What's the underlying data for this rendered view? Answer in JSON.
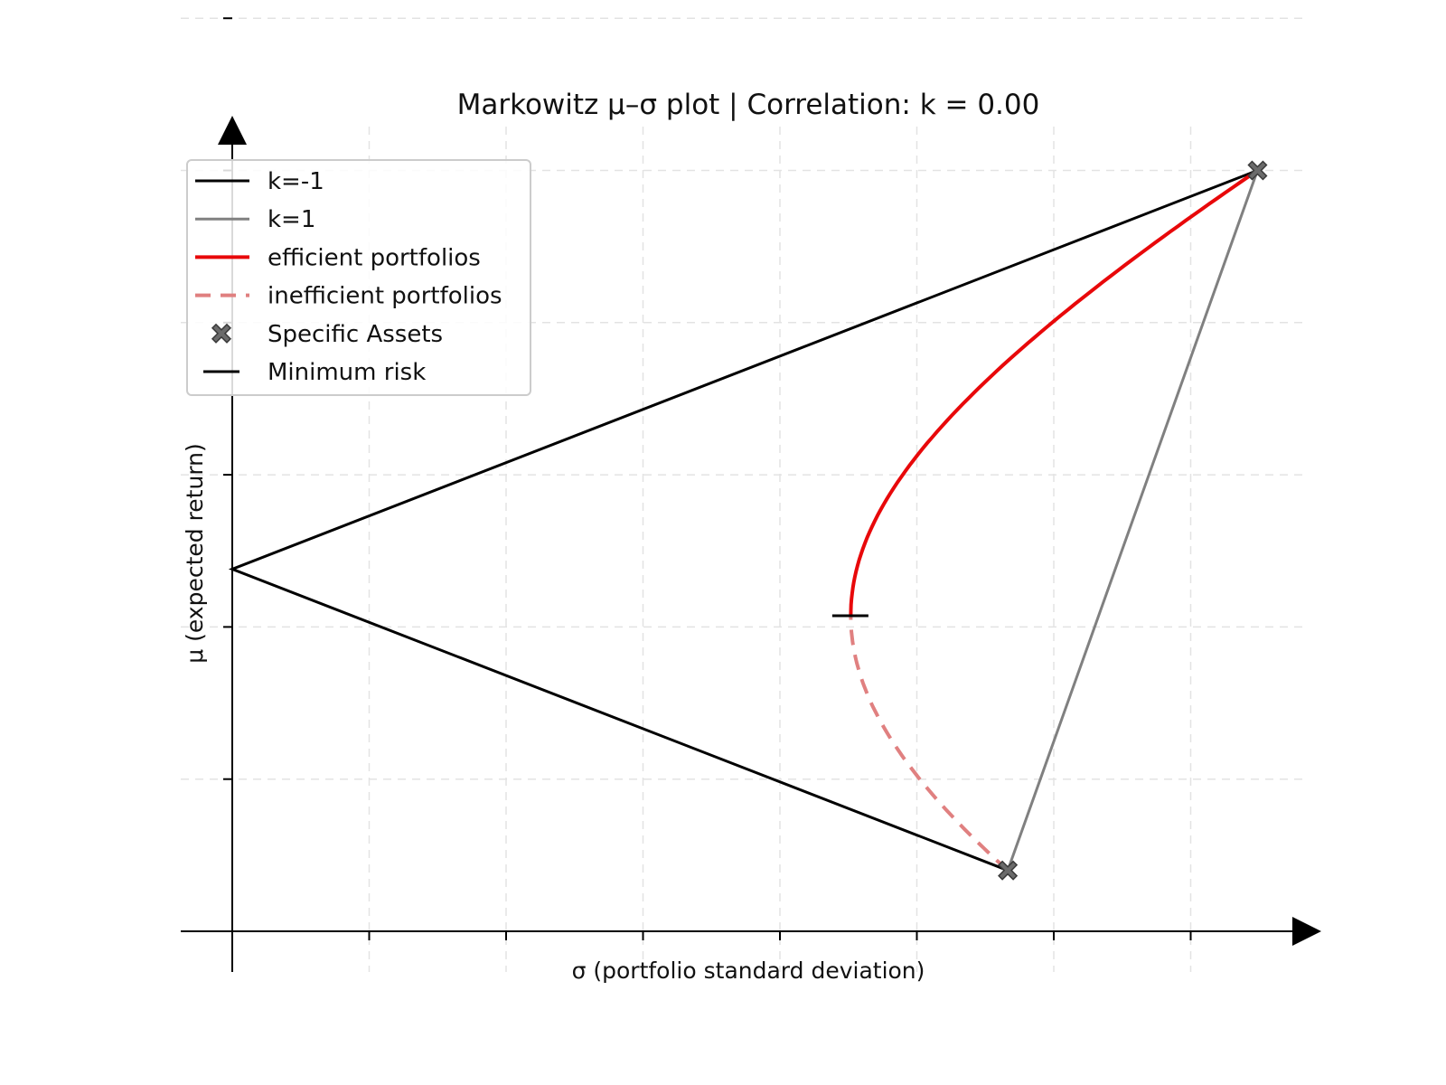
{
  "chart_data": {
    "type": "line",
    "title": "Markowitz μ–σ plot | Correlation: k = 0.00",
    "xlabel": "σ  (portfolio standard deviation)",
    "ylabel": "μ  (expected return)",
    "xlim": [
      -0.02,
      0.44
    ],
    "ylim": [
      -0.03,
      0.47
    ],
    "xticks": [
      0.0,
      0.05,
      0.1,
      0.15,
      0.2,
      0.25,
      0.3,
      0.35
    ],
    "yticks": [
      0.0,
      0.05,
      0.1,
      0.15,
      0.2,
      0.25,
      0.3,
      0.35,
      0.4
    ],
    "tick_labels_shown": false,
    "grid": true,
    "legend_position": "top-left",
    "assets": [
      {
        "sigma": 0.2832,
        "mu": 0.02
      },
      {
        "sigma": 0.3744,
        "mu": 0.25
      }
    ],
    "minimum_risk": {
      "sigma": 0.2257,
      "mu": 0.1037
    },
    "series": [
      {
        "name": "k=-1",
        "color": "#000000",
        "style": "solid",
        "points": [
          [
            0.2832,
            0.02
          ],
          [
            0.0,
            0.119
          ],
          [
            0.3744,
            0.25
          ]
        ]
      },
      {
        "name": "k=1",
        "color": "#808080",
        "style": "solid",
        "points": [
          [
            0.2832,
            0.02
          ],
          [
            0.3744,
            0.25
          ]
        ]
      },
      {
        "name": "efficient portfolios",
        "color": "#e8080a",
        "style": "solid",
        "from_mu": 0.1037,
        "to_mu": 0.25
      },
      {
        "name": "inefficient portfolios",
        "color": "#e08080",
        "style": "dashed",
        "from_mu": 0.02,
        "to_mu": 0.1037
      },
      {
        "name": "Specific Assets",
        "color": "#6b6b6b",
        "style": "marker-x"
      },
      {
        "name": "Minimum risk",
        "color": "#000000",
        "style": "marker-hline"
      }
    ]
  }
}
